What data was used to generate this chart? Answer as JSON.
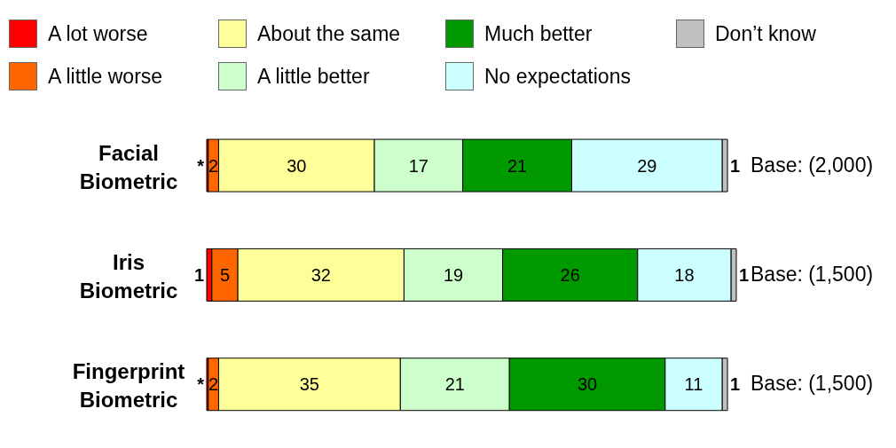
{
  "chart_data": {
    "type": "bar",
    "orientation": "horizontal",
    "stacked": true,
    "legend": "top",
    "grid": false,
    "categories": [
      "Facial Biometric",
      "Iris Biometric",
      "Fingerprint Biometric"
    ],
    "series": [
      {
        "name": "A lot worse",
        "color": "#ff0000",
        "values": [
          0.3,
          1,
          0.3
        ],
        "value_labels": [
          "*",
          "1",
          "*"
        ]
      },
      {
        "name": "A little worse",
        "color": "#ff6600",
        "values": [
          2,
          5,
          2
        ],
        "value_labels": [
          "2",
          "5",
          "2"
        ]
      },
      {
        "name": "About the same",
        "color": "#ffff99",
        "values": [
          30,
          32,
          35
        ],
        "value_labels": [
          "30",
          "32",
          "35"
        ]
      },
      {
        "name": "A little better",
        "color": "#ccffcc",
        "values": [
          17,
          19,
          21
        ],
        "value_labels": [
          "17",
          "19",
          "21"
        ]
      },
      {
        "name": "Much better",
        "color": "#009900",
        "values": [
          21,
          26,
          30
        ],
        "value_labels": [
          "21",
          "26",
          "30"
        ]
      },
      {
        "name": "No expectations",
        "color": "#ccffff",
        "values": [
          29,
          18,
          11
        ],
        "value_labels": [
          "29",
          "18",
          "11"
        ]
      },
      {
        "name": "Don’t know",
        "color": "#c0c0c0",
        "values": [
          1,
          1,
          1
        ],
        "value_labels": [
          "1",
          "1",
          "1"
        ]
      }
    ],
    "annotations": [
      "Base: (2,000)",
      "Base: (1,500)",
      "Base: (1,500)"
    ]
  }
}
